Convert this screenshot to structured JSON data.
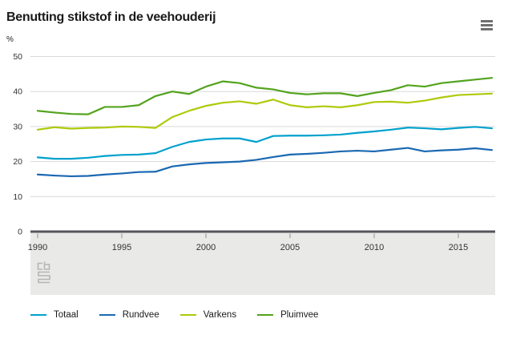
{
  "header": {
    "title": "Benutting stikstof in de veehouderij",
    "menu_icon": "hamburger-menu-icon"
  },
  "icons": {
    "menu": "hamburger-menu-icon",
    "brand": "cbs-logo"
  },
  "colors": {
    "grid": "#d9d9d9",
    "zero_axis": "#55565a",
    "axis_band": "#e9e9e8",
    "tick": "#8f8f8f",
    "tick_text": "#333333",
    "logo": "#b5b5b5"
  },
  "chart_data": {
    "type": "line",
    "title": "Benutting stikstof in de veehouderij",
    "xlabel": "",
    "ylabel": "%",
    "ylim": [
      0,
      50
    ],
    "yticks": [
      0,
      10,
      20,
      30,
      40,
      50
    ],
    "xticks": [
      1990,
      1995,
      2000,
      2005,
      2010,
      2015
    ],
    "grid": true,
    "legend_position": "bottom",
    "x": [
      1990,
      1991,
      1992,
      1993,
      1994,
      1995,
      1996,
      1997,
      1998,
      1999,
      2000,
      2001,
      2002,
      2003,
      2004,
      2005,
      2006,
      2007,
      2008,
      2009,
      2010,
      2011,
      2012,
      2013,
      2014,
      2015,
      2016,
      2017
    ],
    "series": [
      {
        "name": "Totaal",
        "color": "#00a1cd",
        "values": [
          21.2,
          20.8,
          20.8,
          21.1,
          21.6,
          21.9,
          22.0,
          22.4,
          24.2,
          25.6,
          26.3,
          26.6,
          26.6,
          25.6,
          27.3,
          27.4,
          27.4,
          27.5,
          27.7,
          28.2,
          28.6,
          29.1,
          29.7,
          29.5,
          29.2,
          29.6,
          29.9,
          29.5
        ]
      },
      {
        "name": "Rundvee",
        "color": "#1a68b2",
        "values": [
          16.3,
          16.0,
          15.8,
          15.9,
          16.3,
          16.6,
          17.0,
          17.1,
          18.6,
          19.2,
          19.6,
          19.8,
          20.0,
          20.5,
          21.3,
          22.0,
          22.2,
          22.5,
          22.9,
          23.1,
          22.9,
          23.4,
          23.9,
          22.9,
          23.2,
          23.4,
          23.8,
          23.3
        ]
      },
      {
        "name": "Varkens",
        "color": "#afca0b",
        "values": [
          29.1,
          29.8,
          29.4,
          29.6,
          29.7,
          30.0,
          29.9,
          29.6,
          32.7,
          34.5,
          35.9,
          36.8,
          37.2,
          36.5,
          37.7,
          36.1,
          35.5,
          35.8,
          35.5,
          36.1,
          37.0,
          37.1,
          36.8,
          37.4,
          38.3,
          39.0,
          39.2,
          39.4
        ]
      },
      {
        "name": "Pluimvee",
        "color": "#53a31d",
        "values": [
          34.5,
          34.0,
          33.6,
          33.5,
          35.6,
          35.6,
          36.1,
          38.7,
          40.0,
          39.3,
          41.4,
          42.9,
          42.4,
          41.1,
          40.6,
          39.6,
          39.2,
          39.5,
          39.5,
          38.7,
          39.6,
          40.4,
          41.8,
          41.4,
          42.4,
          42.9,
          43.4,
          43.9
        ]
      }
    ]
  }
}
